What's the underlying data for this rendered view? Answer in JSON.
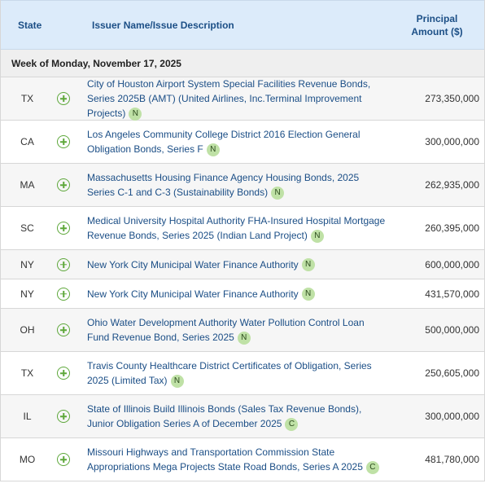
{
  "table": {
    "headers": {
      "state": "State",
      "description": "Issuer Name/Issue Description",
      "amount_line1": "Principal",
      "amount_line2": "Amount ($)"
    },
    "week_label": "Week of Monday, November 17, 2025",
    "rows": [
      {
        "state": "TX",
        "description": "City of Houston Airport System Special Facilities Revenue Bonds, Series 2025B (AMT) (United Airlines, Inc.Terminal Improvement Projects)",
        "badge": "N",
        "amount": "273,350,000"
      },
      {
        "state": "CA",
        "description": "Los Angeles Community College District 2016 Election General Obligation Bonds, Series F",
        "badge": "N",
        "amount": "300,000,000"
      },
      {
        "state": "MA",
        "description": "Massachusetts Housing Finance Agency Housing Bonds, 2025 Series C-1 and C-3 (Sustainability Bonds)",
        "badge": "N",
        "amount": "262,935,000"
      },
      {
        "state": "SC",
        "description": "Medical University Hospital Authority FHA-Insured Hospital Mortgage Revenue Bonds, Series 2025 (Indian Land Project)",
        "badge": "N",
        "amount": "260,395,000"
      },
      {
        "state": "NY",
        "description": "New York City Municipal Water Finance Authority",
        "badge": "N",
        "amount": "600,000,000"
      },
      {
        "state": "NY",
        "description": "New York City Municipal Water Finance Authority",
        "badge": "N",
        "amount": "431,570,000"
      },
      {
        "state": "OH",
        "description": "Ohio Water Development Authority Water Pollution Control Loan Fund Revenue Bond, Series 2025",
        "badge": "N",
        "amount": "500,000,000"
      },
      {
        "state": "TX",
        "description": "Travis County Healthcare District Certificates of Obligation, Series 2025 (Limited Tax)",
        "badge": "N",
        "amount": "250,605,000"
      },
      {
        "state": "IL",
        "description": "State of Illinois Build Illinois Bonds (Sales Tax Revenue Bonds), Junior Obligation Series A of December 2025",
        "badge": "C",
        "amount": "300,000,000"
      },
      {
        "state": "MO",
        "description": "Missouri Highways and Transportation Commission State Appropriations Mega Projects State Road Bonds, Series A 2025",
        "badge": "C",
        "amount": "481,780,000"
      }
    ]
  },
  "colors": {
    "header_bg": "#dcebfa",
    "header_text": "#1c4f86",
    "link": "#1b4e86",
    "plus_icon": "#5ea83b",
    "badge_bg": "#bfe1a6"
  }
}
